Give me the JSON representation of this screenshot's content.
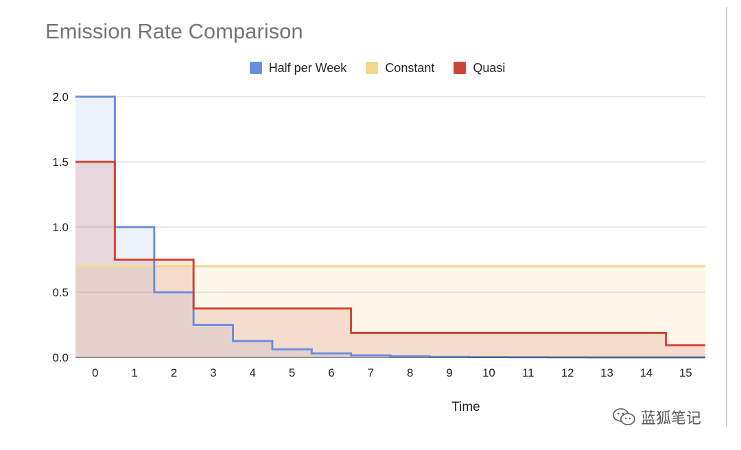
{
  "chart_data": {
    "type": "line",
    "step": true,
    "title": "Emission Rate Comparison",
    "xlabel": "Time",
    "ylabel": "",
    "xlim": [
      -0.5,
      15.5
    ],
    "ylim": [
      0,
      2
    ],
    "x_ticks": [
      "0",
      "1",
      "2",
      "3",
      "4",
      "5",
      "6",
      "7",
      "8",
      "9",
      "10",
      "11",
      "12",
      "13",
      "14",
      "15"
    ],
    "y_ticks": [
      "0.0",
      "0.5",
      "1.0",
      "1.5",
      "2.0"
    ],
    "grid": true,
    "legend_position": "top",
    "x": [
      0,
      1,
      2,
      3,
      4,
      5,
      6,
      7,
      8,
      9,
      10,
      11,
      12,
      13,
      14,
      15
    ],
    "series": [
      {
        "name": "Half per Week",
        "color": "#6a8fdf",
        "values": [
          2,
          1,
          0.5,
          0.25,
          0.125,
          0.0625,
          0.03125,
          0.015625,
          0.0078,
          0.0039,
          0.002,
          0.001,
          0.0005,
          0.00024,
          0.00012,
          6e-05
        ]
      },
      {
        "name": "Constant",
        "color": "#f2d98a",
        "values": [
          0.7,
          0.7,
          0.7,
          0.7,
          0.7,
          0.7,
          0.7,
          0.7,
          0.7,
          0.7,
          0.7,
          0.7,
          0.7,
          0.7,
          0.7,
          0.7
        ]
      },
      {
        "name": "Quasi",
        "color": "#cf4535",
        "values": [
          1.5,
          0.75,
          0.75,
          0.375,
          0.375,
          0.375,
          0.375,
          0.1875,
          0.1875,
          0.1875,
          0.1875,
          0.1875,
          0.1875,
          0.1875,
          0.1875,
          0.09375
        ]
      }
    ]
  },
  "watermark": {
    "text": "蓝狐笔记",
    "icon": "wechat-icon"
  }
}
